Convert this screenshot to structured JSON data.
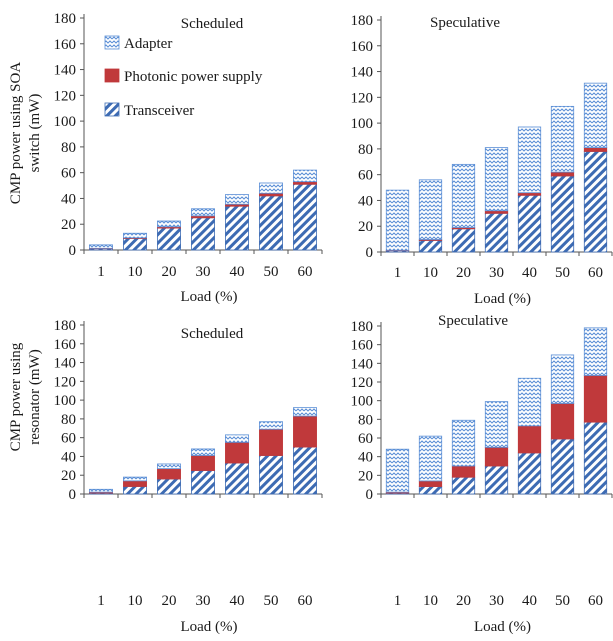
{
  "colors": {
    "transceiver": "#3d6bb3",
    "photonic": "#c0393b",
    "adapter": "#5b8fd6",
    "axis": "#555555"
  },
  "ylabels": {
    "top": [
      "CMP power using SOA",
      "switch (mW)"
    ],
    "bottom": [
      "CMP power  using",
      "resonator  (mW)"
    ]
  },
  "chart_data": [
    {
      "type": "bar",
      "stacked": true,
      "title": "Scheduled",
      "categories": [
        "1",
        "10",
        "20",
        "30",
        "40",
        "50",
        "60"
      ],
      "xlabel": "Load (%)",
      "ylim": [
        0,
        180
      ],
      "yticks": [
        0,
        20,
        40,
        60,
        80,
        100,
        120,
        140,
        160,
        180
      ],
      "legend": {
        "placement": "top-left",
        "entries": [
          "Adapter",
          "Photonic power supply",
          "Transceiver"
        ]
      },
      "series": [
        {
          "name": "Transceiver",
          "values": [
            1,
            9,
            17,
            25,
            34,
            42,
            51
          ]
        },
        {
          "name": "Photonic power supply",
          "values": [
            0.3,
            0.5,
            1,
            1.5,
            1.5,
            2,
            2
          ]
        },
        {
          "name": "Adapter",
          "values": [
            2.7,
            3.5,
            4.5,
            5.5,
            7.5,
            8,
            9
          ]
        }
      ]
    },
    {
      "type": "bar",
      "stacked": true,
      "title": "Speculative",
      "categories": [
        "1",
        "10",
        "20",
        "30",
        "40",
        "50",
        "60"
      ],
      "xlabel": "Load (%)",
      "ylim": [
        0,
        180
      ],
      "yticks": [
        0,
        20,
        40,
        60,
        80,
        100,
        120,
        140,
        160,
        180
      ],
      "series": [
        {
          "name": "Transceiver",
          "values": [
            1,
            9,
            18,
            30,
            44,
            59,
            78
          ]
        },
        {
          "name": "Photonic power supply",
          "values": [
            0.3,
            0.7,
            1,
            2,
            2,
            3,
            3
          ]
        },
        {
          "name": "Adapter",
          "values": [
            46.7,
            46.3,
            49,
            49,
            51,
            51,
            50
          ]
        }
      ]
    },
    {
      "type": "bar",
      "stacked": true,
      "title": "Scheduled",
      "categories": [
        "1",
        "10",
        "20",
        "30",
        "40",
        "50",
        "60"
      ],
      "xlabel": "Load (%)",
      "ylim": [
        0,
        180
      ],
      "yticks": [
        0,
        20,
        40,
        60,
        80,
        100,
        120,
        140,
        160,
        180
      ],
      "series": [
        {
          "name": "Transceiver",
          "values": [
            1,
            8,
            16,
            25,
            33,
            41,
            50
          ]
        },
        {
          "name": "Photonic power supply",
          "values": [
            1,
            6,
            11,
            16,
            22,
            28,
            33
          ]
        },
        {
          "name": "Adapter",
          "values": [
            3,
            4,
            5,
            7,
            8,
            8,
            9
          ]
        }
      ]
    },
    {
      "type": "bar",
      "stacked": true,
      "title": "Speculative",
      "categories": [
        "1",
        "10",
        "20",
        "30",
        "40",
        "50",
        "60"
      ],
      "xlabel": "Load (%)",
      "ylim": [
        0,
        180
      ],
      "yticks": [
        0,
        20,
        40,
        60,
        80,
        100,
        120,
        140,
        160,
        180
      ],
      "series": [
        {
          "name": "Transceiver",
          "values": [
            1,
            8,
            18,
            30,
            44,
            59,
            77
          ]
        },
        {
          "name": "Photonic power supply",
          "values": [
            1,
            6,
            12,
            20,
            29,
            38,
            50
          ]
        },
        {
          "name": "Adapter",
          "values": [
            46,
            48,
            49,
            49,
            51,
            52,
            51
          ]
        }
      ]
    }
  ]
}
